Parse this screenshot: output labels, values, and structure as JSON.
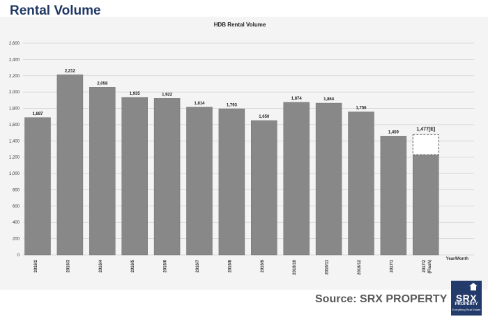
{
  "page": {
    "heading": "Rental Volume",
    "source": "Source:  SRX PROPERTY",
    "logo": {
      "main": "SRX",
      "sub": "PROPERTY",
      "tagline": "Everything Real Estate",
      "icon": "house-icon"
    }
  },
  "colors": {
    "heading": "#1f3864",
    "bar": "#888888",
    "bar_stroke": "#6e6e6e",
    "estimate_outline": "#555555",
    "grid": "#d2d2d2",
    "panel": "#f4f4f4",
    "logo_bg": "#233b6a"
  },
  "chart_data": {
    "type": "bar",
    "title": "HDB Rental Volume",
    "xlabel": "Year/Month",
    "ylabel": "",
    "ylim": [
      0,
      2600
    ],
    "yticks": [
      0,
      200,
      400,
      600,
      800,
      1000,
      1200,
      1400,
      1600,
      1800,
      2000,
      2200,
      2400,
      2600
    ],
    "ytick_labels": [
      "0",
      "200",
      "400",
      "600",
      "800",
      "1,000",
      "1,200",
      "1,400",
      "1,600",
      "1,800",
      "2,000",
      "2,200",
      "2,400",
      "2,600"
    ],
    "grid": true,
    "legend": "none",
    "categories": [
      "2016/2",
      "2016/3",
      "2016/4",
      "2016/5",
      "2016/6",
      "2016/7",
      "2016/8",
      "2016/9",
      "2016/10",
      "2016/11",
      "2016/12",
      "2017/1",
      "2017/2\n(Flash)"
    ],
    "values": [
      1687,
      2212,
      2058,
      1935,
      1922,
      1814,
      1793,
      1650,
      1874,
      1864,
      1756,
      1459,
      1477
    ],
    "value_labels": [
      "1,687",
      "2,212",
      "2,058",
      "1,935",
      "1,922",
      "1,814",
      "1,793",
      "1,650",
      "1,874",
      "1,864",
      "1,756",
      "1,459",
      "1,477[E]"
    ],
    "flash_solid_value": 1230,
    "estimate_index": 12
  }
}
